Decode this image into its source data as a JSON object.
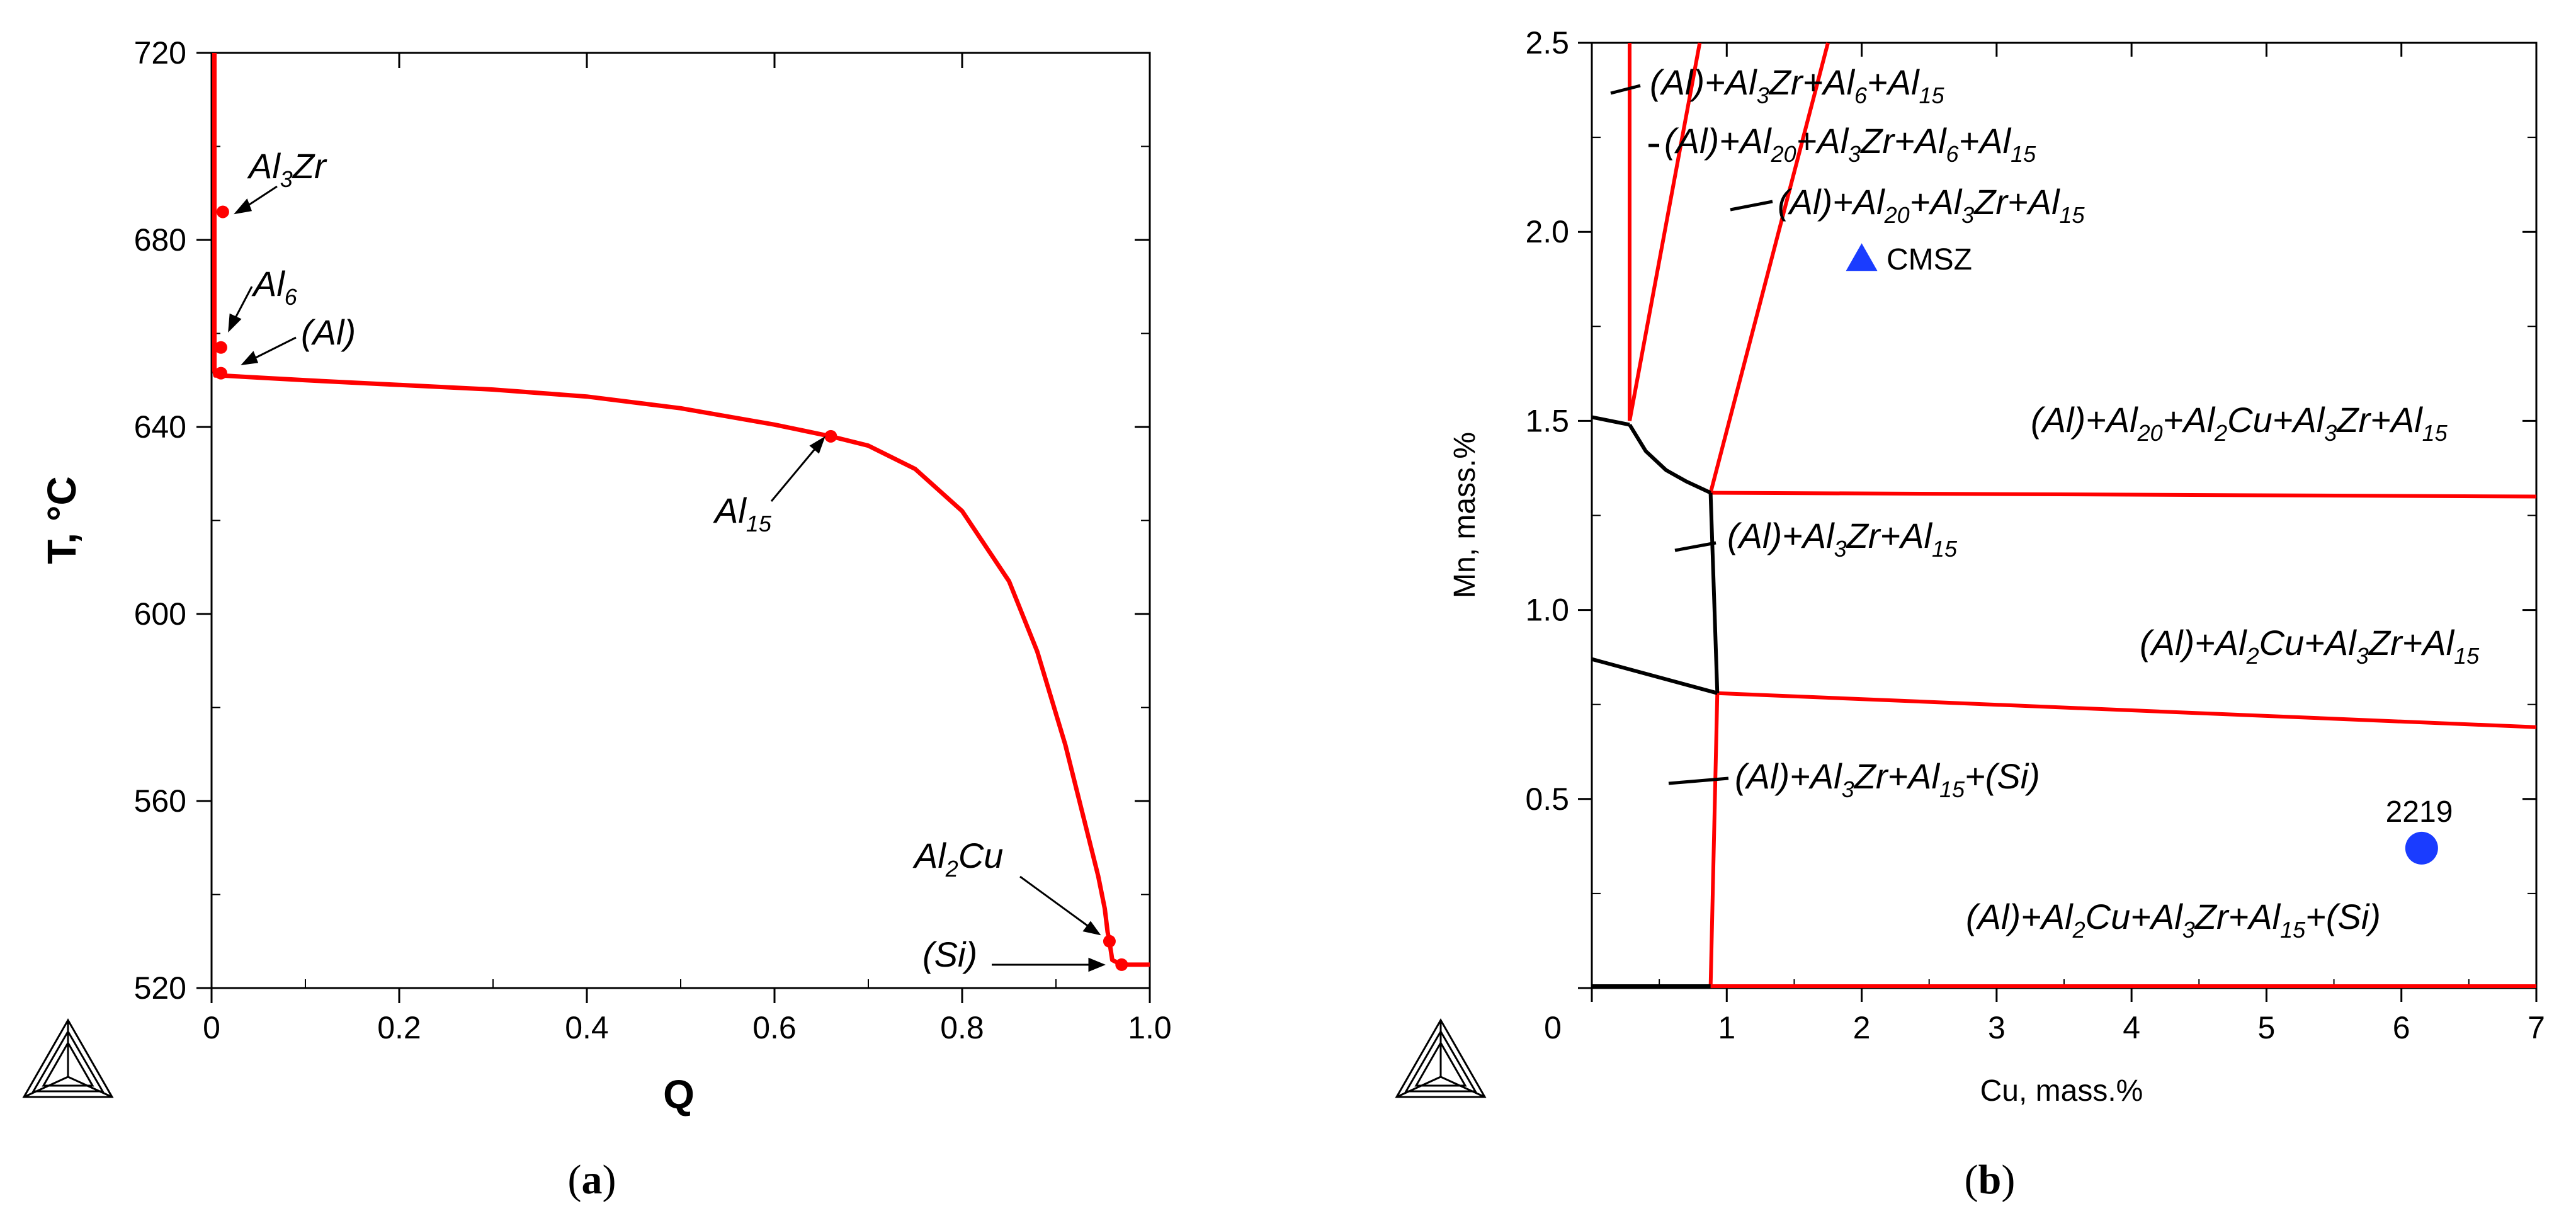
{
  "chart_data": [
    {
      "panel": "(a)",
      "type": "line",
      "xlabel": "Q",
      "ylabel": "T, °C",
      "xlim": [
        0,
        1.0
      ],
      "ylim": [
        520,
        720
      ],
      "xticks": [
        "0",
        "0.2",
        "0.4",
        "0.6",
        "0.8",
        "1.0"
      ],
      "yticks": [
        "520",
        "560",
        "600",
        "640",
        "680",
        "720"
      ],
      "series_color": "#ff0000",
      "series": [
        {
          "x": [
            0.003,
            0.003,
            0.003,
            0.003,
            0.004,
            0.01,
            0.1,
            0.2,
            0.3,
            0.4,
            0.5,
            0.6,
            0.66,
            0.7,
            0.75,
            0.8,
            0.85,
            0.88,
            0.91,
            0.93,
            0.945,
            0.952,
            0.955,
            0.957,
            0.96,
            0.97,
            1.0
          ],
          "y": [
            720,
            686,
            657,
            652,
            651,
            651,
            650,
            649,
            648,
            646.5,
            644,
            640.5,
            638,
            636,
            631,
            622,
            607,
            592,
            572,
            556,
            544,
            537,
            532,
            530,
            526,
            525,
            525
          ]
        }
      ],
      "points": [
        {
          "label": "Al3Zr",
          "x": 0.012,
          "y": 686
        },
        {
          "label": "Al6",
          "x": 0.01,
          "y": 657
        },
        {
          "label": "(Al)",
          "x": 0.01,
          "y": 651.5
        },
        {
          "label": "Al15",
          "x": 0.66,
          "y": 638
        },
        {
          "label": "Al2Cu",
          "x": 0.957,
          "y": 530
        },
        {
          "label": "(Si)",
          "x": 0.97,
          "y": 525
        }
      ],
      "annotations": [
        {
          "text": "Al",
          "sub": "3",
          "text2": "Zr"
        },
        {
          "text": "Al",
          "sub": "6",
          "text2": ""
        },
        {
          "text": "(Al)",
          "sub": "",
          "text2": ""
        },
        {
          "text": "Al",
          "sub": "15",
          "text2": ""
        },
        {
          "text": "Al",
          "sub": "2",
          "text2": "Cu"
        },
        {
          "text": "(Si)",
          "sub": "",
          "text2": ""
        }
      ]
    },
    {
      "panel": "(b)",
      "type": "line",
      "xlabel": "Cu, mass.%",
      "ylabel": "Mn, mass.%",
      "xlim": [
        0,
        7
      ],
      "ylim": [
        0,
        2.5
      ],
      "xticks": [
        "0",
        "1",
        "2",
        "3",
        "4",
        "5",
        "6",
        "7"
      ],
      "yticks": [
        "0.5",
        "1.0",
        "1.5",
        "2.0",
        "2.5"
      ],
      "boundaries": [
        {
          "color": "#ff0000",
          "x": [
            0.28,
            0.28
          ],
          "y": [
            2.5,
            1.5
          ]
        },
        {
          "color": "#ff0000",
          "x": [
            0.28,
            0.8
          ],
          "y": [
            1.5,
            2.5
          ]
        },
        {
          "color": "#ff0000",
          "x": [
            0.88,
            1.75
          ],
          "y": [
            1.31,
            2.5
          ]
        },
        {
          "color": "#ff0000",
          "x": [
            0.88,
            7.0
          ],
          "y": [
            1.31,
            1.3
          ]
        },
        {
          "color": "#ff0000",
          "x": [
            0.93,
            7.0
          ],
          "y": [
            0.78,
            0.69
          ]
        },
        {
          "color": "#ff0000",
          "x": [
            0.93,
            0.88
          ],
          "y": [
            0.78,
            0.0
          ]
        },
        {
          "color": "#ff0000",
          "x": [
            0.88,
            7.0
          ],
          "y": [
            0.005,
            0.005
          ]
        },
        {
          "color": "#000000",
          "x": [
            0.0,
            0.28
          ],
          "y": [
            1.51,
            1.49
          ]
        },
        {
          "color": "#000000",
          "x": [
            0.28,
            0.4,
            0.55,
            0.7,
            0.88
          ],
          "y": [
            1.49,
            1.42,
            1.37,
            1.34,
            1.31
          ]
        },
        {
          "color": "#000000",
          "x": [
            0.88,
            0.93
          ],
          "y": [
            1.31,
            0.78
          ]
        },
        {
          "color": "#000000",
          "x": [
            0.0,
            0.93
          ],
          "y": [
            0.87,
            0.78
          ]
        },
        {
          "color": "#000000",
          "x": [
            0.0,
            0.88
          ],
          "y": [
            0.005,
            0.005
          ]
        }
      ],
      "markers": [
        {
          "label": "CMSZ",
          "x": 2.0,
          "y": 1.93,
          "shape": "triangle",
          "color": "#1a3cff"
        },
        {
          "label": "2219",
          "x": 6.15,
          "y": 0.37,
          "shape": "circle",
          "color": "#1a3cff"
        }
      ],
      "region_labels": [
        {
          "parts": [
            "(Al)+Al",
            "3",
            "Zr+Al",
            "6",
            "+Al",
            "15"
          ]
        },
        {
          "parts": [
            "(Al)+Al",
            "20",
            "+Al",
            "3",
            "Zr+Al",
            "6",
            "+Al",
            "15"
          ]
        },
        {
          "parts": [
            "(Al)+Al",
            "20",
            "+Al",
            "3",
            "Zr+Al",
            "15"
          ]
        },
        {
          "parts": [
            "(Al)+Al",
            "20",
            "+Al",
            "2",
            "Cu+Al",
            "3",
            "Zr+Al",
            "15"
          ]
        },
        {
          "parts": [
            "(Al)+Al",
            "3",
            "Zr+Al",
            "15"
          ]
        },
        {
          "parts": [
            "(Al)+Al",
            "2",
            "Cu+Al",
            "3",
            "Zr+Al",
            "15"
          ]
        },
        {
          "parts": [
            "(Al)+Al",
            "3",
            "Zr+Al",
            "15",
            "+(Si)"
          ]
        },
        {
          "parts": [
            "(Al)+Al",
            "2",
            "Cu+Al",
            "3",
            "Zr+Al",
            "15",
            "+(Si)"
          ]
        }
      ]
    }
  ],
  "captions": {
    "a": "(a)",
    "b": "(b)",
    "a_letter": "a",
    "b_letter": "b"
  },
  "logo_icon": "thermo-calc-logo-icon"
}
